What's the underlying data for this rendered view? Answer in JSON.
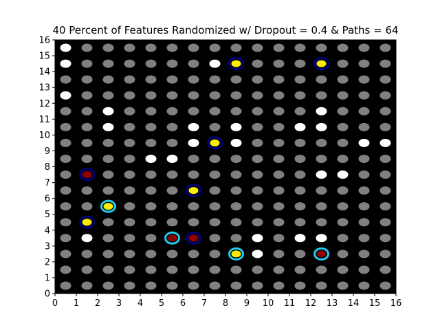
{
  "chart_data": {
    "type": "scatter",
    "title": "40 Percent of Features Randomized w/ Dropout = 0.4 & Paths = 64",
    "xlabel": "",
    "ylabel": "",
    "xlim": [
      0,
      16
    ],
    "ylim": [
      0,
      16
    ],
    "xticks": [
      0,
      1,
      2,
      3,
      4,
      5,
      6,
      7,
      8,
      9,
      10,
      11,
      12,
      13,
      14,
      15,
      16
    ],
    "yticks": [
      0,
      1,
      2,
      3,
      4,
      5,
      6,
      7,
      8,
      9,
      10,
      11,
      12,
      13,
      14,
      15,
      16
    ],
    "grid": false,
    "background_color": "#000000",
    "colors": {
      "inactive": "#808080",
      "selected": "#ffffff",
      "highlight_yellow": "#ffee00",
      "highlight_red": "#8b0000",
      "ring_navy": "#000080",
      "ring_cyan": "#22ccee"
    },
    "grid_points": {
      "x": [
        0.5,
        1.5,
        2.5,
        3.5,
        4.5,
        5.5,
        6.5,
        7.5,
        8.5,
        9.5,
        10.5,
        11.5,
        12.5,
        13.5,
        14.5,
        15.5
      ],
      "y": [
        0.5,
        1.5,
        2.5,
        3.5,
        4.5,
        5.5,
        6.5,
        7.5,
        8.5,
        9.5,
        10.5,
        11.5,
        12.5,
        13.5,
        14.5,
        15.5
      ]
    },
    "white_points": [
      [
        0.5,
        15.5
      ],
      [
        0.5,
        14.5
      ],
      [
        0.5,
        12.5
      ],
      [
        7.5,
        14.5
      ],
      [
        2.5,
        11.5
      ],
      [
        12.5,
        11.5
      ],
      [
        2.5,
        10.5
      ],
      [
        6.5,
        10.5
      ],
      [
        8.5,
        10.5
      ],
      [
        11.5,
        10.5
      ],
      [
        12.5,
        10.5
      ],
      [
        6.5,
        9.5
      ],
      [
        8.5,
        9.5
      ],
      [
        14.5,
        9.5
      ],
      [
        15.5,
        9.5
      ],
      [
        4.5,
        8.5
      ],
      [
        5.5,
        8.5
      ],
      [
        12.5,
        7.5
      ],
      [
        13.5,
        7.5
      ],
      [
        1.5,
        3.5
      ],
      [
        9.5,
        3.5
      ],
      [
        11.5,
        3.5
      ],
      [
        12.5,
        3.5
      ],
      [
        9.5,
        2.5
      ]
    ],
    "highlighted_points": [
      {
        "x": 8.5,
        "y": 14.5,
        "fill": "yellow",
        "ring": "navy"
      },
      {
        "x": 12.5,
        "y": 14.5,
        "fill": "yellow",
        "ring": "navy"
      },
      {
        "x": 7.5,
        "y": 9.5,
        "fill": "yellow",
        "ring": "navy"
      },
      {
        "x": 1.5,
        "y": 7.5,
        "fill": "red",
        "ring": "navy"
      },
      {
        "x": 6.5,
        "y": 6.5,
        "fill": "yellow",
        "ring": "navy"
      },
      {
        "x": 2.5,
        "y": 5.5,
        "fill": "yellow",
        "ring": "cyan"
      },
      {
        "x": 1.5,
        "y": 4.5,
        "fill": "yellow",
        "ring": "navy"
      },
      {
        "x": 5.5,
        "y": 3.5,
        "fill": "red",
        "ring": "cyan"
      },
      {
        "x": 6.5,
        "y": 3.5,
        "fill": "red",
        "ring": "navy"
      },
      {
        "x": 8.5,
        "y": 2.5,
        "fill": "yellow",
        "ring": "cyan"
      },
      {
        "x": 12.5,
        "y": 2.5,
        "fill": "red",
        "ring": "cyan"
      }
    ]
  }
}
